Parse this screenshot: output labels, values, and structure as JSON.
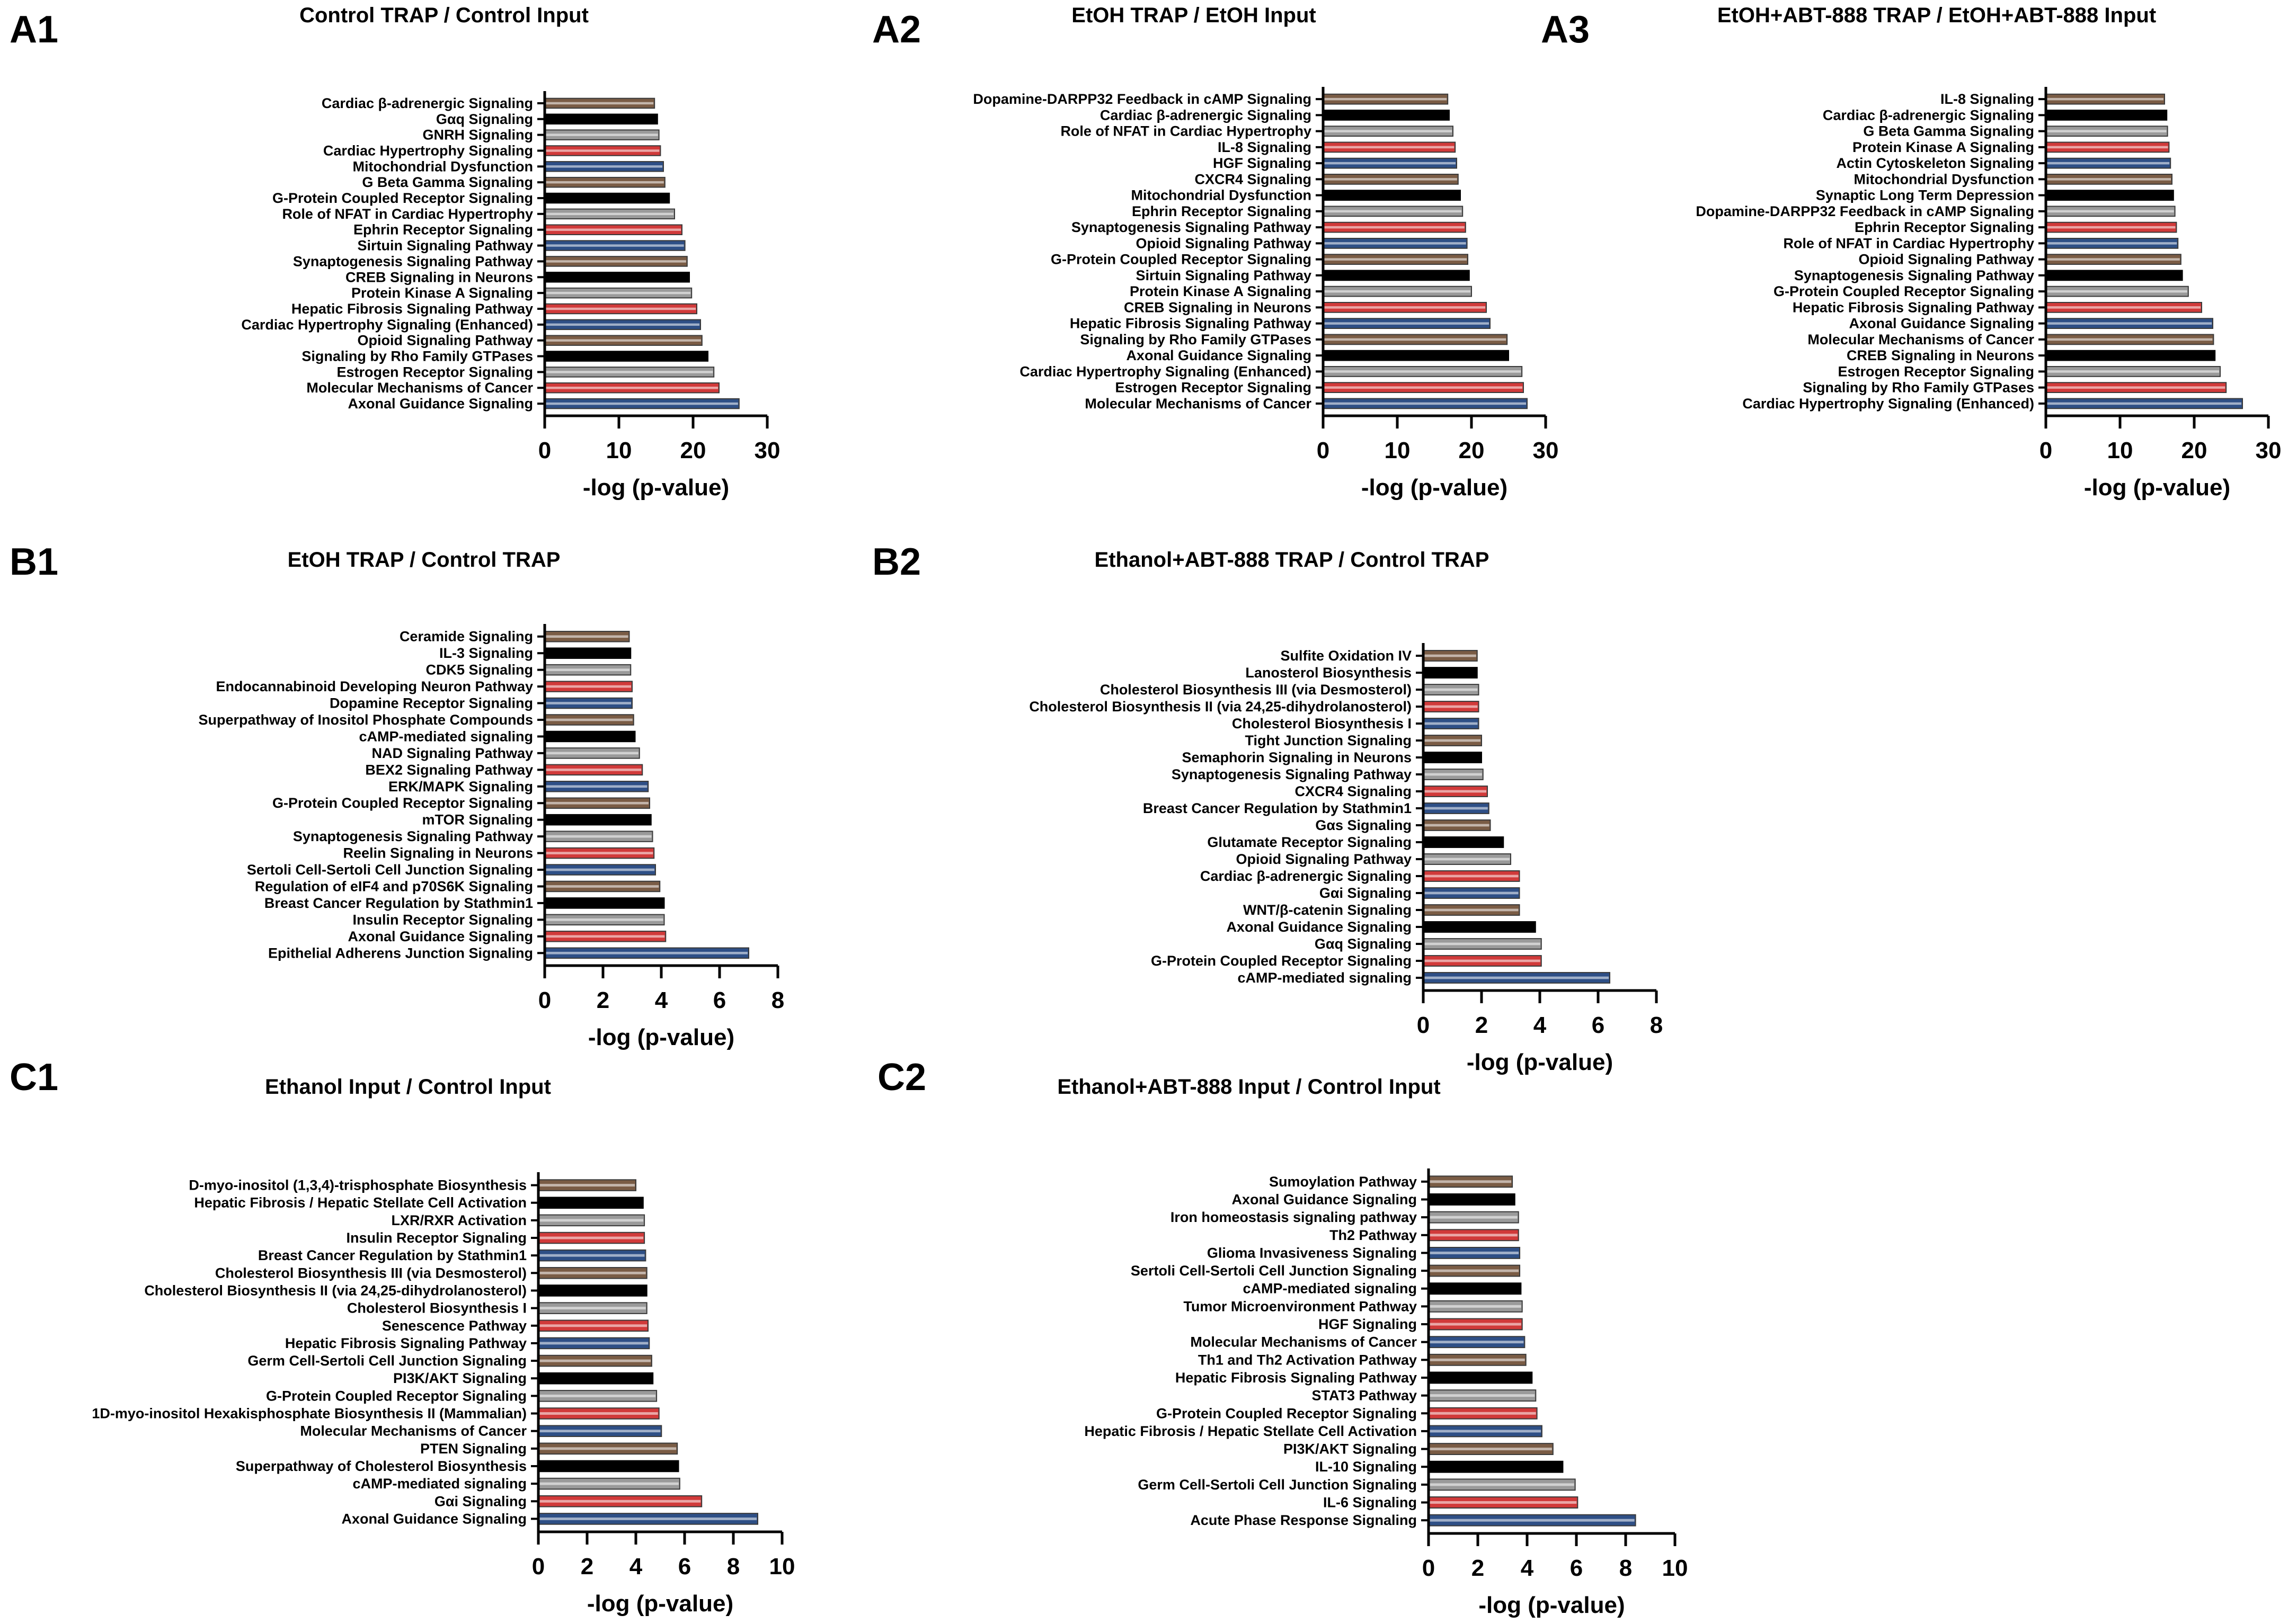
{
  "figure_title": "",
  "colors": {
    "brown": "#7a5c45",
    "black": "#000000",
    "gray": "#9a9a9a",
    "red": "#d13a3a",
    "blue": "#2e4f86"
  },
  "color_cycle": [
    "brown",
    "black",
    "gray",
    "red",
    "blue"
  ],
  "chart_data": [
    {
      "panel": "A1",
      "type": "bar",
      "orientation": "horizontal",
      "title": "Control TRAP / Control Input",
      "xlabel": "-log (p-value)",
      "xlim": [
        0,
        30
      ],
      "xticks": [
        0,
        10,
        20,
        30
      ],
      "categories": [
        "Cardiac β-adrenergic Signaling",
        "Gαq Signaling",
        "GNRH Signaling",
        "Cardiac Hypertrophy Signaling",
        "Mitochondrial Dysfunction",
        "G Beta Gamma Signaling",
        "G-Protein Coupled Receptor Signaling",
        "Role of NFAT in Cardiac Hypertrophy",
        "Ephrin Receptor Signaling",
        "Sirtuin Signaling Pathway",
        "Synaptogenesis Signaling Pathway",
        "CREB Signaling in Neurons",
        "Protein Kinase A Signaling",
        "Hepatic Fibrosis Signaling Pathway",
        "Cardiac Hypertrophy Signaling (Enhanced)",
        "Opioid Signaling Pathway",
        "Signaling by Rho Family GTPases",
        "Estrogen Receptor Signaling",
        "Molecular Mechanisms of Cancer",
        "Axonal Guidance Signaling"
      ],
      "values": [
        14.8,
        15.2,
        15.4,
        15.6,
        16.0,
        16.2,
        16.8,
        17.5,
        18.5,
        18.9,
        19.2,
        19.5,
        19.8,
        20.5,
        21.0,
        21.2,
        22.0,
        22.8,
        23.5,
        26.2
      ]
    },
    {
      "panel": "A2",
      "type": "bar",
      "orientation": "horizontal",
      "title": "EtOH TRAP / EtOH Input",
      "xlabel": "-log (p-value)",
      "xlim": [
        0,
        30
      ],
      "xticks": [
        0,
        10,
        20,
        30
      ],
      "categories": [
        "Dopamine-DARPP32 Feedback in cAMP Signaling",
        "Cardiac β-adrenergic Signaling",
        "Role of NFAT in Cardiac Hypertrophy",
        "IL-8 Signaling",
        "HGF Signaling",
        "CXCR4 Signaling",
        "Mitochondrial Dysfunction",
        "Ephrin Receptor Signaling",
        "Synaptogenesis Signaling Pathway",
        "Opioid Signaling Pathway",
        "G-Protein Coupled Receptor Signaling",
        "Sirtuin Signaling Pathway",
        "Protein Kinase A Signaling",
        "CREB Signaling in Neurons",
        "Hepatic Fibrosis Signaling Pathway",
        "Signaling by Rho Family GTPases",
        "Axonal Guidance Signaling",
        "Cardiac Hypertrophy Signaling (Enhanced)",
        "Estrogen Receptor Signaling",
        "Molecular Mechanisms of Cancer"
      ],
      "values": [
        16.8,
        17.0,
        17.5,
        17.8,
        18.0,
        18.2,
        18.5,
        18.8,
        19.2,
        19.4,
        19.5,
        19.7,
        20.0,
        22.0,
        22.5,
        24.8,
        25.0,
        26.8,
        27.0,
        27.5
      ]
    },
    {
      "panel": "A3",
      "type": "bar",
      "orientation": "horizontal",
      "title": "EtOH+ABT-888 TRAP / EtOH+ABT-888 Input",
      "xlabel": "-log (p-value)",
      "xlim": [
        0,
        30
      ],
      "xticks": [
        0,
        10,
        20,
        30
      ],
      "categories": [
        "IL-8 Signaling",
        "Cardiac β-adrenergic Signaling",
        "G Beta Gamma Signaling",
        "Protein Kinase A Signaling",
        "Actin Cytoskeleton Signaling",
        "Mitochondrial Dysfunction",
        "Synaptic Long Term Depression",
        "Dopamine-DARPP32 Feedback in cAMP Signaling",
        "Ephrin Receptor Signaling",
        "Role of NFAT in Cardiac Hypertrophy",
        "Opioid Signaling Pathway",
        "Synaptogenesis Signaling Pathway",
        "G-Protein Coupled Receptor Signaling",
        "Hepatic Fibrosis Signaling Pathway",
        "Axonal Guidance Signaling",
        "Molecular Mechanisms of Cancer",
        "CREB Signaling in Neurons",
        "Estrogen Receptor Signaling",
        "Signaling by Rho Family GTPases",
        "Cardiac Hypertrophy Signaling (Enhanced)"
      ],
      "values": [
        16.0,
        16.3,
        16.4,
        16.6,
        16.8,
        17.0,
        17.2,
        17.4,
        17.6,
        17.8,
        18.2,
        18.4,
        19.2,
        21.0,
        22.5,
        22.6,
        22.8,
        23.5,
        24.3,
        26.5
      ]
    },
    {
      "panel": "B1",
      "type": "bar",
      "orientation": "horizontal",
      "title": "EtOH TRAP / Control TRAP",
      "xlabel": "-log (p-value)",
      "xlim": [
        0,
        8
      ],
      "xticks": [
        0,
        2,
        4,
        6,
        8
      ],
      "categories": [
        "Ceramide Signaling",
        "IL-3 Signaling",
        "CDK5 Signaling",
        "Endocannabinoid Developing Neuron Pathway",
        "Dopamine Receptor Signaling",
        "Superpathway of Inositol Phosphate Compounds",
        "cAMP-mediated signaling",
        "NAD Signaling Pathway",
        "BEX2 Signaling Pathway",
        "ERK/MAPK Signaling",
        "G-Protein Coupled Receptor Signaling",
        "mTOR Signaling",
        "Synaptogenesis Signaling Pathway",
        "Reelin Signaling in Neurons",
        "Sertoli Cell-Sertoli Cell Junction Signaling",
        "Regulation of eIF4 and p70S6K Signaling",
        "Breast Cancer Regulation by Stathmin1",
        "Insulin Receptor Signaling",
        "Axonal Guidance Signaling",
        "Epithelial Adherens Junction Signaling"
      ],
      "values": [
        2.9,
        2.95,
        2.95,
        3.0,
        3.0,
        3.05,
        3.1,
        3.25,
        3.35,
        3.55,
        3.6,
        3.65,
        3.7,
        3.75,
        3.8,
        3.95,
        4.1,
        4.1,
        4.15,
        7.0
      ]
    },
    {
      "panel": "B2",
      "type": "bar",
      "orientation": "horizontal",
      "title": "Ethanol+ABT-888 TRAP / Control TRAP",
      "xlabel": "-log (p-value)",
      "xlim": [
        0,
        8
      ],
      "xticks": [
        0,
        2,
        4,
        6,
        8
      ],
      "categories": [
        "Sulfite Oxidation IV",
        "Lanosterol Biosynthesis",
        "Cholesterol Biosynthesis III (via Desmosterol)",
        "Cholesterol Biosynthesis II (via 24,25-dihydrolanosterol)",
        "Cholesterol Biosynthesis I",
        "Tight Junction Signaling",
        "Semaphorin Signaling in Neurons",
        "Synaptogenesis Signaling Pathway",
        "CXCR4 Signaling",
        "Breast Cancer Regulation by Stathmin1",
        "Gαs Signaling",
        "Glutamate Receptor Signaling",
        "Opioid Signaling Pathway",
        "Cardiac β-adrenergic Signaling",
        "Gαi Signaling",
        "WNT/β-catenin Signaling",
        "Axonal Guidance Signaling",
        "Gαq Signaling",
        "G-Protein Coupled Receptor Signaling",
        "cAMP-mediated signaling"
      ],
      "values": [
        1.85,
        1.85,
        1.9,
        1.9,
        1.9,
        2.0,
        2.0,
        2.05,
        2.2,
        2.25,
        2.3,
        2.75,
        3.0,
        3.3,
        3.3,
        3.3,
        3.85,
        4.05,
        4.05,
        6.4
      ]
    },
    {
      "panel": "C1",
      "type": "bar",
      "orientation": "horizontal",
      "title": "Ethanol Input / Control Input",
      "xlabel": "-log (p-value)",
      "xlim": [
        0,
        10
      ],
      "xticks": [
        0,
        2,
        4,
        6,
        8,
        10
      ],
      "categories": [
        "D-myo-inositol (1,3,4)-trisphosphate Biosynthesis",
        "Hepatic Fibrosis / Hepatic Stellate Cell Activation",
        "LXR/RXR Activation",
        "Insulin Receptor Signaling",
        "Breast Cancer Regulation by Stathmin1",
        "Cholesterol Biosynthesis III (via Desmosterol)",
        "Cholesterol Biosynthesis II (via 24,25-dihydrolanosterol)",
        "Cholesterol Biosynthesis I",
        "Senescence Pathway",
        "Hepatic Fibrosis Signaling Pathway",
        "Germ Cell-Sertoli Cell Junction Signaling",
        "PI3K/AKT Signaling",
        "G-Protein Coupled Receptor Signaling",
        "1D-myo-inositol Hexakisphosphate Biosynthesis II (Mammalian)",
        "Molecular Mechanisms of Cancer",
        "PTEN Signaling",
        "Superpathway of Cholesterol Biosynthesis",
        "cAMP-mediated signaling",
        "Gαi Signaling",
        "Axonal Guidance Signaling"
      ],
      "values": [
        4.0,
        4.3,
        4.35,
        4.35,
        4.4,
        4.45,
        4.45,
        4.45,
        4.5,
        4.55,
        4.65,
        4.7,
        4.85,
        4.95,
        5.05,
        5.7,
        5.75,
        5.8,
        6.7,
        9.0
      ]
    },
    {
      "panel": "C2",
      "type": "bar",
      "orientation": "horizontal",
      "title": "Ethanol+ABT-888 Input / Control Input",
      "xlabel": "-log (p-value)",
      "xlim": [
        0,
        10
      ],
      "xticks": [
        0,
        2,
        4,
        6,
        8,
        10
      ],
      "categories": [
        "Sumoylation Pathway",
        "Axonal Guidance Signaling",
        "Iron homeostasis signaling pathway",
        "Th2 Pathway",
        "Glioma Invasiveness Signaling",
        "Sertoli Cell-Sertoli Cell Junction Signaling",
        "cAMP-mediated signaling",
        "Tumor Microenvironment Pathway",
        "HGF Signaling",
        "Molecular Mechanisms of Cancer",
        "Th1 and Th2 Activation Pathway",
        "Hepatic Fibrosis Signaling Pathway",
        "STAT3 Pathway",
        "G-Protein Coupled Receptor Signaling",
        "Hepatic Fibrosis / Hepatic Stellate Cell Activation",
        "PI3K/AKT Signaling",
        "IL-10 Signaling",
        "Germ Cell-Sertoli Cell Junction Signaling",
        "IL-6 Signaling",
        "Acute Phase Response Signaling"
      ],
      "values": [
        3.4,
        3.5,
        3.65,
        3.65,
        3.7,
        3.7,
        3.75,
        3.8,
        3.8,
        3.9,
        3.95,
        4.2,
        4.35,
        4.4,
        4.6,
        5.05,
        5.45,
        5.95,
        6.05,
        8.4
      ]
    }
  ]
}
